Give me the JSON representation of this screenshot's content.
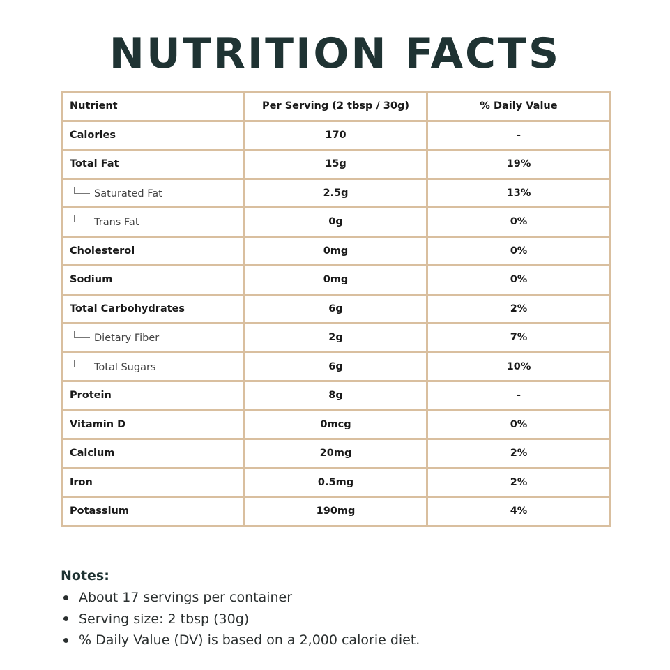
{
  "title": "NUTRITION FACTS",
  "table": {
    "headers": [
      "Nutrient",
      "Per Serving (2 tbsp / 30g)",
      "% Daily Value"
    ],
    "rows": [
      {
        "nutrient": "Calories",
        "per_serving": "170",
        "daily_value": "-",
        "sub": false
      },
      {
        "nutrient": "Total Fat",
        "per_serving": "15g",
        "daily_value": "19%",
        "sub": false
      },
      {
        "nutrient": "Saturated Fat",
        "per_serving": "2.5g",
        "daily_value": "13%",
        "sub": true
      },
      {
        "nutrient": "Trans Fat",
        "per_serving": "0g",
        "daily_value": "0%",
        "sub": true
      },
      {
        "nutrient": "Cholesterol",
        "per_serving": "0mg",
        "daily_value": "0%",
        "sub": false
      },
      {
        "nutrient": "Sodium",
        "per_serving": "0mg",
        "daily_value": "0%",
        "sub": false
      },
      {
        "nutrient": "Total Carbohydrates",
        "per_serving": "6g",
        "daily_value": "2%",
        "sub": false
      },
      {
        "nutrient": "Dietary Fiber",
        "per_serving": "2g",
        "daily_value": "7%",
        "sub": true
      },
      {
        "nutrient": "Total Sugars",
        "per_serving": "6g",
        "daily_value": "10%",
        "sub": true
      },
      {
        "nutrient": "Protein",
        "per_serving": "8g",
        "daily_value": "-",
        "sub": false
      },
      {
        "nutrient": "Vitamin D",
        "per_serving": "0mcg",
        "daily_value": "0%",
        "sub": false
      },
      {
        "nutrient": "Calcium",
        "per_serving": "20mg",
        "daily_value": "2%",
        "sub": false
      },
      {
        "nutrient": "Iron",
        "per_serving": "0.5mg",
        "daily_value": "2%",
        "sub": false
      },
      {
        "nutrient": "Potassium",
        "per_serving": "190mg",
        "daily_value": "4%",
        "sub": false
      }
    ]
  },
  "notes": {
    "heading": "Notes:",
    "items": [
      "About 17 servings per container",
      "Serving size: 2 tbsp (30g)",
      "% Daily Value (DV) is based on a 2,000 calorie diet."
    ]
  },
  "colors": {
    "title": "#1f3333",
    "border": "#d9bf9f",
    "text": "#1a1a1a"
  }
}
